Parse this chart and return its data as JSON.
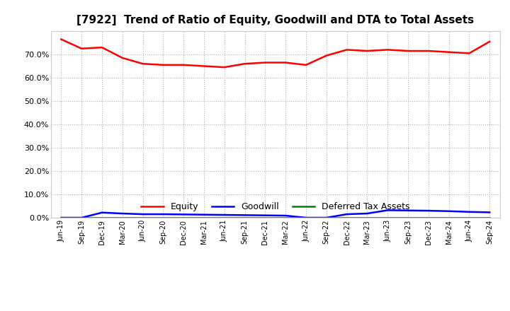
{
  "title": "[7922]  Trend of Ratio of Equity, Goodwill and DTA to Total Assets",
  "x_labels": [
    "Jun-19",
    "Sep-19",
    "Dec-19",
    "Mar-20",
    "Jun-20",
    "Sep-20",
    "Dec-20",
    "Mar-21",
    "Jun-21",
    "Sep-21",
    "Dec-21",
    "Mar-22",
    "Jun-22",
    "Sep-22",
    "Dec-22",
    "Mar-23",
    "Jun-23",
    "Sep-23",
    "Dec-23",
    "Mar-24",
    "Jun-24",
    "Sep-24"
  ],
  "equity": [
    76.5,
    72.5,
    73.0,
    68.5,
    66.0,
    65.5,
    65.5,
    65.0,
    64.5,
    66.0,
    66.5,
    66.5,
    65.5,
    69.5,
    72.0,
    71.5,
    72.0,
    71.5,
    71.5,
    71.0,
    70.5,
    75.5
  ],
  "goodwill": [
    0.0,
    0.0,
    2.2,
    1.8,
    1.5,
    1.5,
    1.4,
    1.3,
    1.2,
    1.1,
    1.0,
    0.9,
    0.0,
    0.0,
    1.5,
    1.8,
    3.2,
    3.1,
    3.0,
    2.8,
    2.5,
    2.3
  ],
  "dta": [
    0.0,
    0.0,
    0.0,
    0.0,
    0.0,
    0.0,
    0.0,
    0.0,
    0.0,
    0.0,
    0.0,
    0.0,
    0.0,
    0.0,
    0.0,
    0.0,
    0.0,
    0.0,
    0.0,
    0.0,
    0.0,
    0.0
  ],
  "equity_color": "#ff0000",
  "goodwill_color": "#0000ff",
  "dta_color": "#008000",
  "background_color": "#ffffff",
  "grid_color": "#b0b0b0",
  "ylim": [
    0,
    80
  ],
  "yticks": [
    0.0,
    10.0,
    20.0,
    30.0,
    40.0,
    50.0,
    60.0,
    70.0
  ],
  "title_fontsize": 11,
  "legend_labels": [
    "Equity",
    "Goodwill",
    "Deferred Tax Assets"
  ]
}
